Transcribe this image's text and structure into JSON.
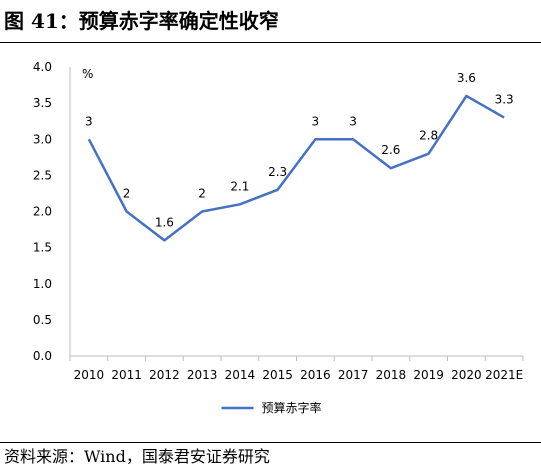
{
  "figure_title": "图 41：预算赤字率确定性收窄",
  "source_note": "资料来源：Wind，国泰君安证券研究",
  "chart_data": {
    "type": "line",
    "title": "",
    "unit_label": "%",
    "xlabel": "",
    "ylabel": "",
    "ylim": [
      0,
      4.0
    ],
    "ytick_step": 0.5,
    "ytick_labels": [
      "0.0",
      "0.5",
      "1.0",
      "1.5",
      "2.0",
      "2.5",
      "3.0",
      "3.5",
      "4.0"
    ],
    "grid": false,
    "legend_position": "bottom",
    "categories": [
      "2010",
      "2011",
      "2012",
      "2013",
      "2014",
      "2015",
      "2016",
      "2017",
      "2018",
      "2019",
      "2020",
      "2021E"
    ],
    "series": [
      {
        "name": "预算赤字率",
        "color": "#4472C4",
        "values": [
          3,
          2,
          1.6,
          2,
          2.1,
          2.3,
          3,
          3,
          2.6,
          2.8,
          3.6,
          3.3
        ],
        "data_labels": [
          "3",
          "2",
          "1.6",
          "2",
          "2.1",
          "2.3",
          "3",
          "3",
          "2.6",
          "2.8",
          "3.6",
          "3.3"
        ]
      }
    ]
  }
}
